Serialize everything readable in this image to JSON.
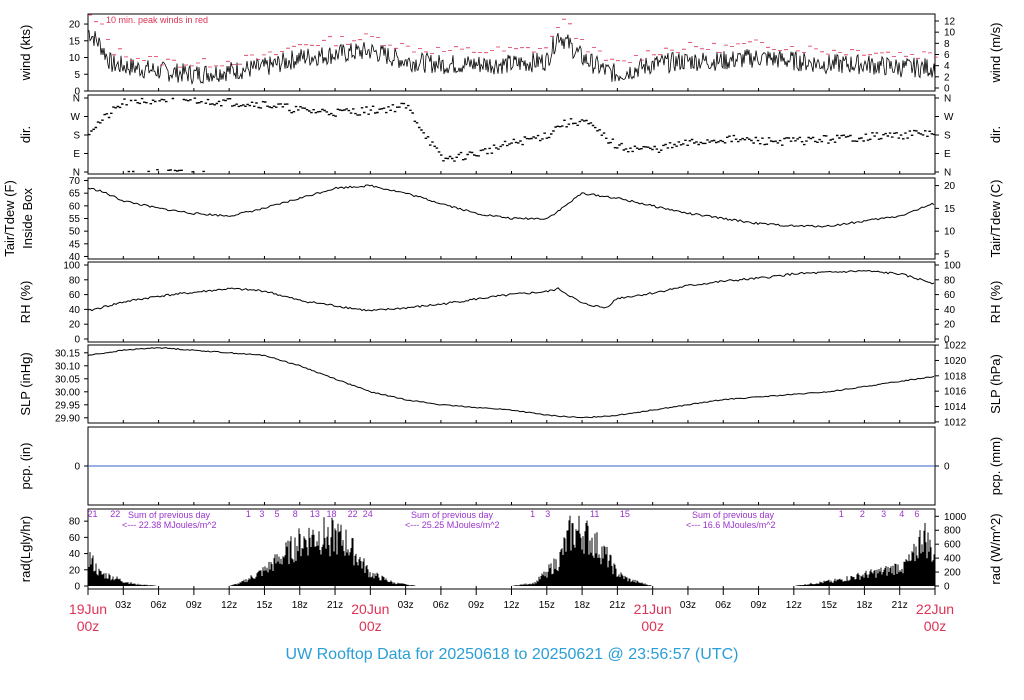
{
  "footer": {
    "text": "UW Rooftop Data for 20250618  to  20250621 @ 23:56:57  (UTC)"
  },
  "colors": {
    "accent_red": "#dd3355",
    "purple": "#9933cc",
    "title_blue": "#2a9ed6",
    "precip_line": "#3060c8",
    "trace": "#000000"
  },
  "chart_data": {
    "type": "line",
    "time_axis": {
      "range": [
        "19Jun 00z",
        "22Jun 00z"
      ],
      "ticks": [
        "19Jun 00z",
        "03z",
        "06z",
        "09z",
        "12z",
        "15z",
        "18z",
        "21z",
        "20Jun 00z",
        "03z",
        "06z",
        "09z",
        "12z",
        "15z",
        "18z",
        "21z",
        "21Jun 00z",
        "03z",
        "06z",
        "09z",
        "12z",
        "15z",
        "18z",
        "21z",
        "22Jun 00z"
      ],
      "day_labels": [
        {
          "date": "19Jun",
          "time": "00z"
        },
        {
          "date": "20Jun",
          "time": "00z"
        },
        {
          "date": "21Jun",
          "time": "00z"
        },
        {
          "date": "22Jun",
          "time": "00z"
        }
      ],
      "hour_labels": [
        "03z",
        "06z",
        "09z",
        "12z",
        "15z",
        "18z",
        "21z"
      ]
    },
    "panels": [
      {
        "id": "wind",
        "ylabel_left": "wind (kts)",
        "ylabel_right": "wind (m/s)",
        "ylim": [
          0,
          23
        ],
        "yticks_left": [
          "0",
          "5",
          "10",
          "15",
          "20"
        ],
        "yticks_right": [
          "0",
          "2",
          "4",
          "6",
          "8",
          "10",
          "12"
        ],
        "annotation": "10 min. peak winds in red",
        "series": [
          {
            "role": "mean",
            "color": "#000000",
            "x_hours": [
              0,
              1,
              2,
              4,
              6,
              9,
              12,
              15,
              18,
              21,
              24,
              27,
              30,
              33,
              36,
              39,
              40,
              42,
              44,
              45,
              48,
              51,
              54,
              57,
              60,
              63,
              66,
              69,
              72
            ],
            "y": [
              18,
              14,
              8,
              7,
              6,
              5,
              6,
              7,
              10,
              11,
              12,
              9,
              8,
              8,
              8,
              9,
              17,
              10,
              6,
              5,
              8,
              9,
              9,
              10,
              9,
              8,
              8,
              7,
              7
            ]
          },
          {
            "role": "peak",
            "color": "#dd3355",
            "x_hours": [
              0,
              1,
              2,
              4,
              6,
              9,
              12,
              15,
              18,
              21,
              24,
              27,
              30,
              33,
              36,
              39,
              40,
              42,
              44,
              45,
              48,
              51,
              54,
              57,
              60,
              63,
              66,
              69,
              72
            ],
            "y": [
              22,
              19,
              12,
              10,
              9,
              8,
              9,
              10,
              14,
              15,
              16,
              13,
              12,
              12,
              12,
              13,
              22,
              14,
              9,
              8,
              12,
              13,
              13,
              14,
              13,
              12,
              12,
              11,
              11
            ]
          }
        ]
      },
      {
        "id": "dir",
        "ylabel_left": "dir.",
        "ylabel_right": "dir.",
        "yticks": [
          "N",
          "E",
          "S",
          "W",
          "N"
        ],
        "series": [
          {
            "role": "direction_deg",
            "color": "#000000",
            "x_hours": [
              0,
              3,
              6,
              9,
              12,
              15,
              18,
              21,
              24,
              27,
              30,
              33,
              36,
              39,
              40,
              42,
              45,
              48,
              51,
              54,
              57,
              60,
              63,
              66,
              69,
              72
            ],
            "y": [
              200,
              340,
              355,
              350,
              340,
              330,
              300,
              290,
              300,
              320,
              60,
              90,
              140,
              180,
              230,
              250,
              120,
              110,
              140,
              160,
              150,
              150,
              160,
              170,
              180,
              190
            ]
          }
        ]
      },
      {
        "id": "temp",
        "ylabel_left": "Tair/Tdew (F)\nInside Box",
        "ylabel_right": "Tair/Tdew (C)",
        "ylim": [
          39,
          71
        ],
        "yticks_left": [
          "40",
          "45",
          "50",
          "55",
          "60",
          "65",
          "70"
        ],
        "yticks_right": [
          "5",
          "10",
          "15",
          "20"
        ],
        "series": [
          {
            "role": "tair",
            "color": "#000000",
            "x_hours": [
              0,
              1,
              3,
              6,
              9,
              12,
              15,
              18,
              21,
              24,
              27,
              30,
              33,
              36,
              39,
              40,
              42,
              45,
              48,
              51,
              54,
              57,
              60,
              63,
              66,
              69,
              72
            ],
            "y": [
              67,
              66,
              62,
              59,
              57,
              56,
              59,
              63,
              67,
              68,
              65,
              61,
              57,
              55,
              55,
              58,
              65,
              63,
              60,
              57,
              55,
              53,
              52,
              52,
              54,
              56,
              61
            ]
          }
        ]
      },
      {
        "id": "rh",
        "ylabel_left": "RH (%)",
        "ylabel_right": "RH (%)",
        "ylim": [
          0,
          100
        ],
        "yticks": [
          "0",
          "20",
          "40",
          "60",
          "80",
          "100"
        ],
        "series": [
          {
            "role": "rh",
            "color": "#000000",
            "x_hours": [
              0,
              3,
              6,
              9,
              12,
              15,
              18,
              21,
              24,
              27,
              30,
              33,
              36,
              39,
              40,
              42,
              44,
              45,
              48,
              51,
              54,
              57,
              60,
              63,
              66,
              69,
              72
            ],
            "y": [
              38,
              50,
              58,
              63,
              68,
              65,
              52,
              45,
              38,
              42,
              47,
              54,
              60,
              64,
              68,
              48,
              42,
              55,
              62,
              72,
              78,
              82,
              88,
              90,
              92,
              88,
              75
            ]
          }
        ]
      },
      {
        "id": "slp",
        "ylabel_left": "SLP (inHg)",
        "ylabel_right": "SLP (hPa)",
        "ylim": [
          29.88,
          30.18
        ],
        "yticks_left": [
          "29.90",
          "29.95",
          "30.00",
          "30.05",
          "30.10",
          "30.15"
        ],
        "yticks_right": [
          "1012",
          "1014",
          "1016",
          "1018",
          "1020",
          "1022"
        ],
        "series": [
          {
            "role": "slp",
            "color": "#000000",
            "x_hours": [
              0,
              3,
              6,
              9,
              12,
              15,
              18,
              21,
              24,
              27,
              30,
              33,
              36,
              39,
              42,
              45,
              48,
              51,
              54,
              57,
              60,
              63,
              66,
              69,
              72
            ],
            "y": [
              30.14,
              30.16,
              30.17,
              30.16,
              30.15,
              30.14,
              30.1,
              30.05,
              30.0,
              29.97,
              29.95,
              29.94,
              29.93,
              29.91,
              29.9,
              29.91,
              29.93,
              29.95,
              29.97,
              29.98,
              29.99,
              30.0,
              30.02,
              30.04,
              30.06
            ]
          }
        ]
      },
      {
        "id": "pcp",
        "ylabel_left": "pcp. (in)",
        "ylabel_right": "pcp. (mm)",
        "yticks": [
          "0"
        ],
        "series": [
          {
            "role": "precip",
            "color": "#3060c8",
            "x_hours": [
              0,
              72
            ],
            "y": [
              0,
              0
            ]
          }
        ]
      },
      {
        "id": "rad",
        "ylabel_left": "rad(Lgly/hr)",
        "ylabel_right": "rad (W/m^2)",
        "ylim": [
          0,
          95
        ],
        "yticks_left": [
          "0",
          "20",
          "40",
          "60",
          "80"
        ],
        "yticks_right": [
          "0",
          "200",
          "400",
          "600",
          "800",
          "1000"
        ],
        "hour_tick_labels_top": [
          "21",
          "22",
          "1",
          "3",
          "5",
          "8",
          "13",
          "18",
          "22",
          "24",
          "1",
          "3",
          "11",
          "15",
          "1",
          "2",
          "3",
          "4",
          "6"
        ],
        "daily_notes": [
          {
            "line1": "Sum of previous day",
            "line2": "<--- 22.38 MJoules/m^2"
          },
          {
            "line1": "Sum of previous day",
            "line2": "<--- 25.25 MJoules/m^2"
          },
          {
            "line1": "Sum of previous day",
            "line2": "<--- 16.6 MJoules/m^2"
          }
        ],
        "series": [
          {
            "role": "radiation",
            "color": "#000000",
            "x_hours": [
              0,
              1,
              2,
              3,
              4,
              6,
              12,
              13,
              15,
              17,
              18,
              19,
              20,
              21,
              22,
              23,
              24,
              26,
              28,
              36,
              38,
              40,
              41,
              42,
              43,
              44,
              45,
              46,
              48,
              60,
              62,
              64,
              66,
              68,
              70,
              71,
              72
            ],
            "y": [
              50,
              20,
              15,
              8,
              3,
              0,
              0,
              5,
              25,
              55,
              70,
              80,
              82,
              80,
              70,
              45,
              20,
              5,
              0,
              0,
              5,
              40,
              85,
              88,
              70,
              50,
              20,
              10,
              0,
              0,
              5,
              10,
              18,
              25,
              40,
              85,
              45
            ]
          }
        ]
      }
    ]
  }
}
